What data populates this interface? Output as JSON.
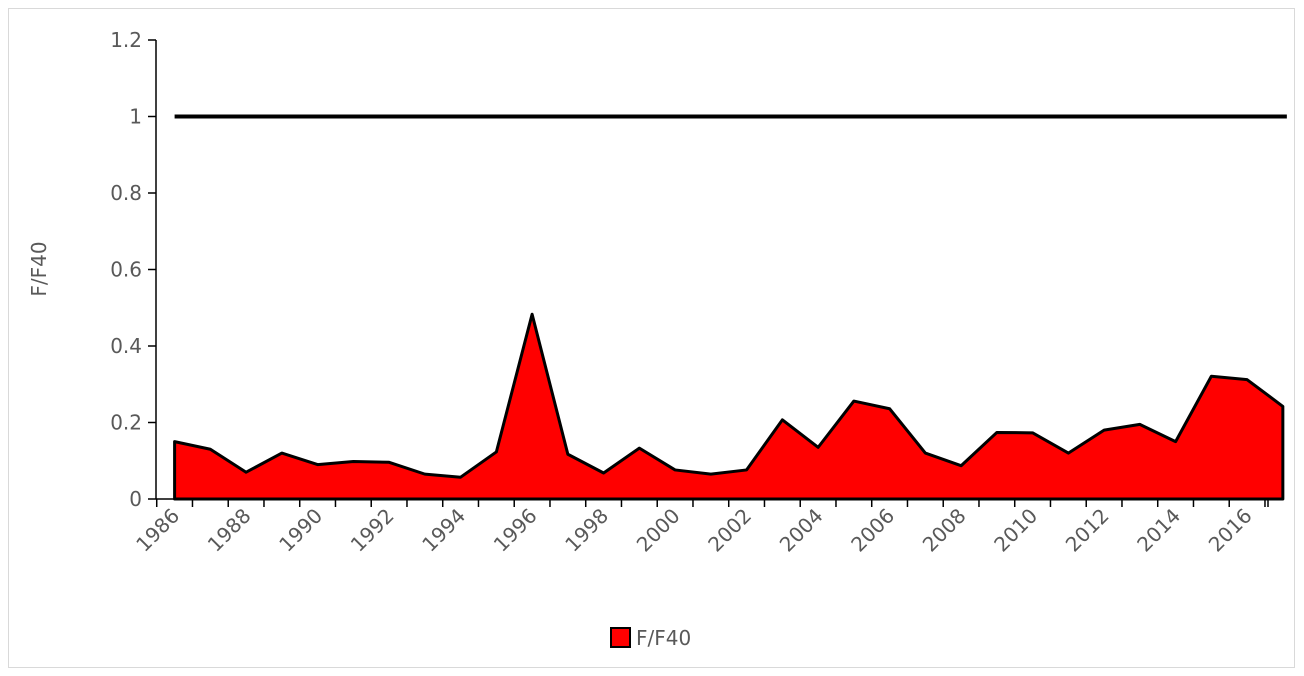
{
  "chart_data": {
    "type": "area",
    "title": "",
    "xlabel": "",
    "ylabel": "F/F40",
    "ylim": [
      0,
      1.2
    ],
    "yticks": [
      0,
      0.2,
      0.4,
      0.6,
      0.8,
      1,
      1.2
    ],
    "ytick_labels": [
      "0",
      "0.2",
      "0.4",
      "0.6",
      "0.8",
      "1",
      "1.2"
    ],
    "x": [
      1986,
      1987,
      1988,
      1989,
      1990,
      1991,
      1992,
      1993,
      1994,
      1995,
      1996,
      1997,
      1998,
      1999,
      2000,
      2001,
      2002,
      2003,
      2004,
      2005,
      2006,
      2007,
      2008,
      2009,
      2010,
      2011,
      2012,
      2013,
      2014,
      2015,
      2016,
      2017
    ],
    "xtick_labels": [
      "1986",
      "1988",
      "1990",
      "1992",
      "1994",
      "1996",
      "1998",
      "2000",
      "2002",
      "2004",
      "2006",
      "2008",
      "2010",
      "2012",
      "2014",
      "2016"
    ],
    "series": [
      {
        "name": "F/F40",
        "type": "area",
        "color": "#ff0000",
        "values": [
          0.15,
          0.13,
          0.07,
          0.12,
          0.09,
          0.098,
          0.096,
          0.065,
          0.057,
          0.123,
          0.483,
          0.117,
          0.068,
          0.133,
          0.076,
          0.065,
          0.076,
          0.207,
          0.135,
          0.256,
          0.236,
          0.12,
          0.087,
          0.174,
          0.173,
          0.12,
          0.18,
          0.195,
          0.15,
          0.321,
          0.312,
          0.242
        ]
      }
    ],
    "reference_line": {
      "value": 1,
      "color": "#000000"
    },
    "legend": {
      "position": "bottom",
      "entries": [
        "F/F40"
      ]
    },
    "grid": false
  }
}
